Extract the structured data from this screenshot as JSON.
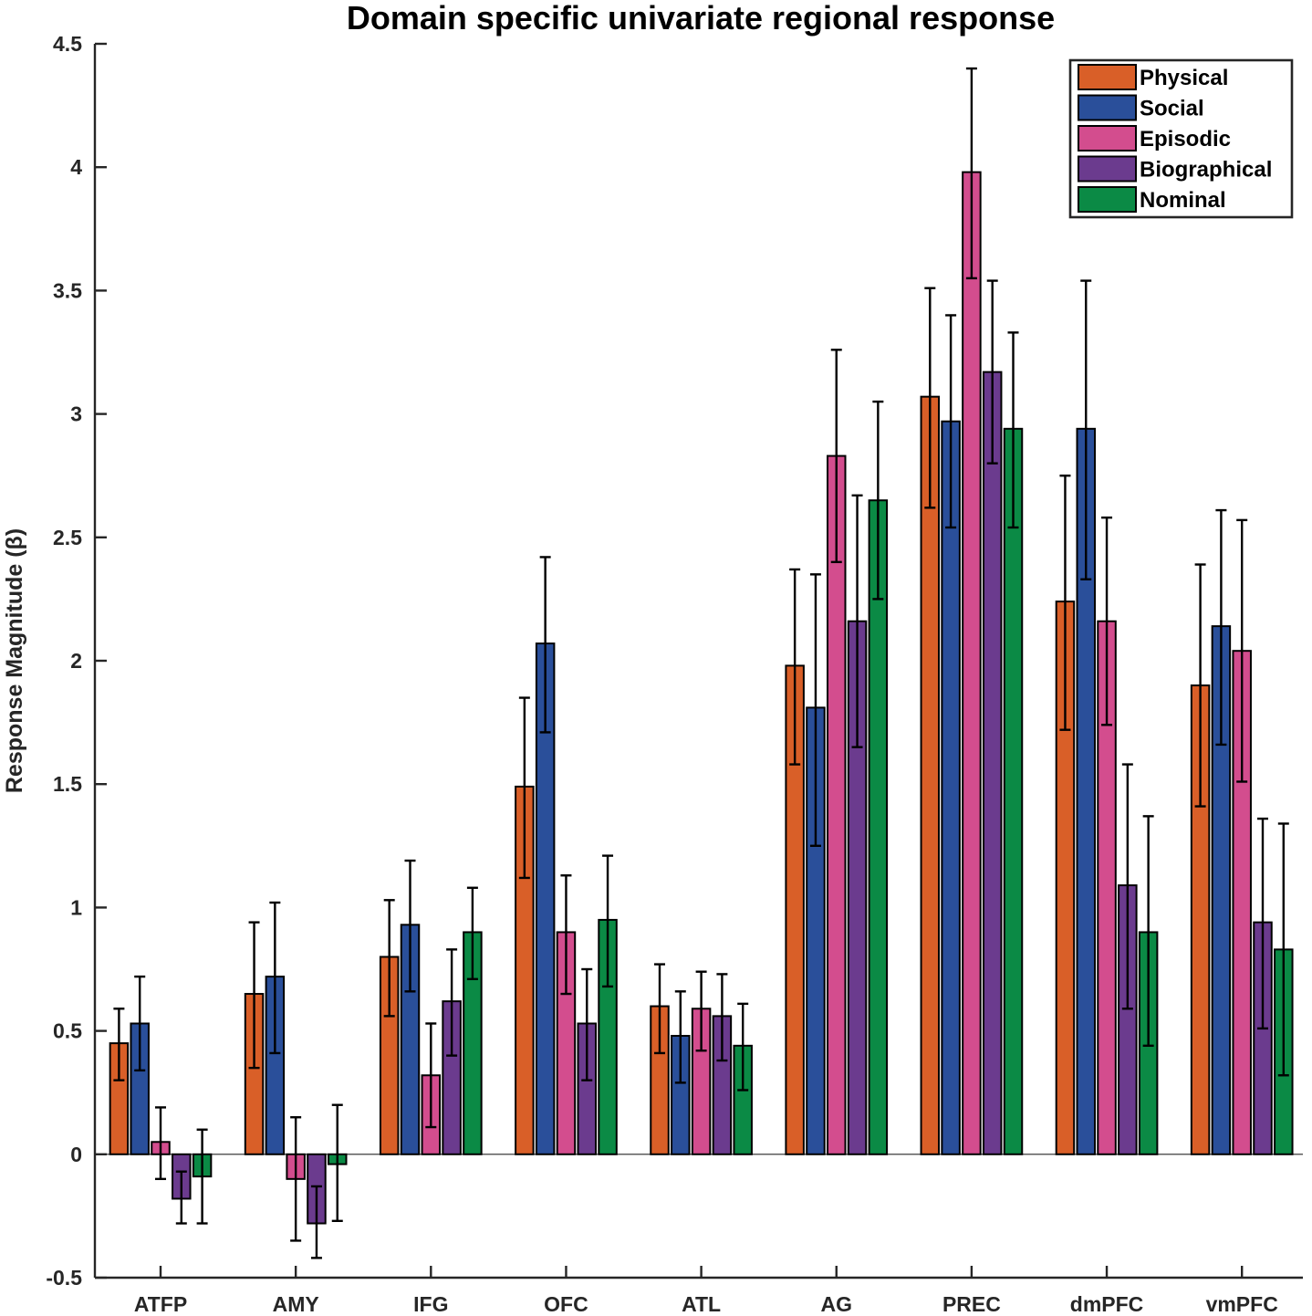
{
  "chart_data": {
    "type": "bar",
    "title": "Domain specific univariate regional response",
    "xlabel": "",
    "ylabel": "Response Magnitude (β)",
    "ylim": [
      -0.5,
      4.5
    ],
    "yticks": [
      -0.5,
      0,
      0.5,
      1,
      1.5,
      2,
      2.5,
      3,
      3.5,
      4,
      4.5
    ],
    "ytick_labels": [
      "-0.5",
      "0",
      "0.5",
      "1",
      "1.5",
      "2",
      "2.5",
      "3",
      "3.5",
      "4",
      "4.5"
    ],
    "categories": [
      "ATFP",
      "AMY",
      "IFG",
      "OFC",
      "ATL",
      "AG",
      "PREC",
      "dmPFC",
      "vmPFC"
    ],
    "legend_position": "top-right",
    "grid": false,
    "error_bars": true,
    "series": [
      {
        "name": "Physical",
        "color": "#D95F28",
        "values": [
          0.45,
          0.65,
          0.8,
          1.49,
          0.6,
          1.98,
          3.07,
          2.24,
          1.9
        ],
        "err_low": [
          0.3,
          0.35,
          0.56,
          1.12,
          0.41,
          1.58,
          2.62,
          1.72,
          1.41
        ],
        "err_high": [
          0.59,
          0.94,
          1.03,
          1.85,
          0.77,
          2.37,
          3.51,
          2.75,
          2.39
        ]
      },
      {
        "name": "Social",
        "color": "#2A4F9A",
        "values": [
          0.53,
          0.72,
          0.93,
          2.07,
          0.48,
          1.81,
          2.97,
          2.94,
          2.14
        ],
        "err_low": [
          0.34,
          0.41,
          0.66,
          1.71,
          0.29,
          1.25,
          2.54,
          2.33,
          1.66
        ],
        "err_high": [
          0.72,
          1.02,
          1.19,
          2.42,
          0.66,
          2.35,
          3.4,
          3.54,
          2.61
        ]
      },
      {
        "name": "Episodic",
        "color": "#D34D8E",
        "values": [
          0.05,
          -0.1,
          0.32,
          0.9,
          0.59,
          2.83,
          3.98,
          2.16,
          2.04
        ],
        "err_low": [
          -0.1,
          -0.35,
          0.11,
          0.65,
          0.42,
          2.4,
          3.55,
          1.74,
          1.51
        ],
        "err_high": [
          0.19,
          0.15,
          0.53,
          1.13,
          0.74,
          3.26,
          4.4,
          2.58,
          2.57
        ]
      },
      {
        "name": "Biographical",
        "color": "#6B3B8E",
        "values": [
          -0.18,
          -0.28,
          0.62,
          0.53,
          0.56,
          2.16,
          3.17,
          1.09,
          0.94
        ],
        "err_low": [
          -0.28,
          -0.42,
          0.4,
          0.3,
          0.38,
          1.65,
          2.8,
          0.59,
          0.51
        ],
        "err_high": [
          -0.07,
          -0.13,
          0.83,
          0.75,
          0.73,
          2.67,
          3.54,
          1.58,
          1.36
        ]
      },
      {
        "name": "Nominal",
        "color": "#0B8A45",
        "values": [
          -0.09,
          -0.04,
          0.9,
          0.95,
          0.44,
          2.65,
          2.94,
          0.9,
          0.83
        ],
        "err_low": [
          -0.28,
          -0.27,
          0.71,
          0.68,
          0.26,
          2.25,
          2.54,
          0.44,
          0.32
        ],
        "err_high": [
          0.1,
          0.2,
          1.08,
          1.21,
          0.61,
          3.05,
          3.33,
          1.37,
          1.34
        ]
      }
    ]
  }
}
